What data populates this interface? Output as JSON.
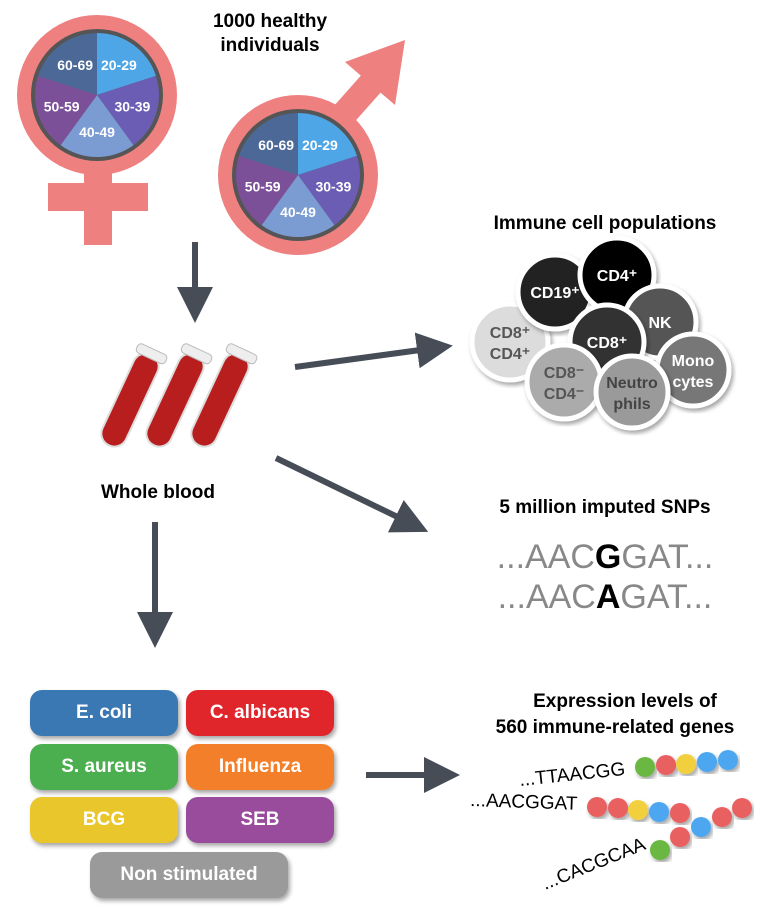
{
  "cohort": {
    "title_line1": "1000 healthy",
    "title_line2": "individuals",
    "age_groups": [
      "20-29",
      "30-39",
      "40-49",
      "50-59",
      "60-69"
    ],
    "age_colors": [
      "#4ea6e6",
      "#6a5db3",
      "#7b9cd3",
      "#7c4f99",
      "#4b6896"
    ],
    "symbol_color": "#ee8080"
  },
  "blood": {
    "label": "Whole blood"
  },
  "cells": {
    "title": "Immune cell populations",
    "items": [
      {
        "l1": "CD8⁺",
        "l2": "CD4⁺",
        "fill": "#dcdcdc",
        "text": "#555"
      },
      {
        "l1": "CD19⁺",
        "l2": "",
        "fill": "#222",
        "text": "#fff"
      },
      {
        "l1": "CD4⁺",
        "l2": "",
        "fill": "#000",
        "text": "#fff"
      },
      {
        "l1": "NK",
        "l2": "",
        "fill": "#555",
        "text": "#fff"
      },
      {
        "l1": "CD8⁺",
        "l2": "",
        "fill": "#333",
        "text": "#fff"
      },
      {
        "l1": "CD8⁻",
        "l2": "CD4⁻",
        "fill": "#ababab",
        "text": "#555"
      },
      {
        "l1": "Mono",
        "l2": "cytes",
        "fill": "#777",
        "text": "#fff"
      },
      {
        "l1": "Neutro",
        "l2": "phils",
        "fill": "#9a9a9a",
        "text": "#444"
      }
    ]
  },
  "snps": {
    "title": "5 million imputed SNPs",
    "seq1": {
      "pre": "...AAC",
      "alt": "G",
      "post": "GAT..."
    },
    "seq2": {
      "pre": "...AAC",
      "alt": "A",
      "post": "GAT..."
    }
  },
  "stimuli": [
    {
      "label": "E. coli",
      "color": "#3a78b4"
    },
    {
      "label": "C. albicans",
      "color": "#e0252b"
    },
    {
      "label": "S. aureus",
      "color": "#4bae4f"
    },
    {
      "label": "Influenza",
      "color": "#f47f2a"
    },
    {
      "label": "BCG",
      "color": "#e9c62b"
    },
    {
      "label": "SEB",
      "color": "#9a4c9c"
    },
    {
      "label": "Non stimulated",
      "color": "#9a9a9a"
    }
  ],
  "expression": {
    "title_line1": "Expression levels of",
    "title_line2": "560 immune-related genes",
    "seqs": [
      "...TTAACGG",
      "...AACGGAT",
      "...CACGCAA"
    ]
  }
}
